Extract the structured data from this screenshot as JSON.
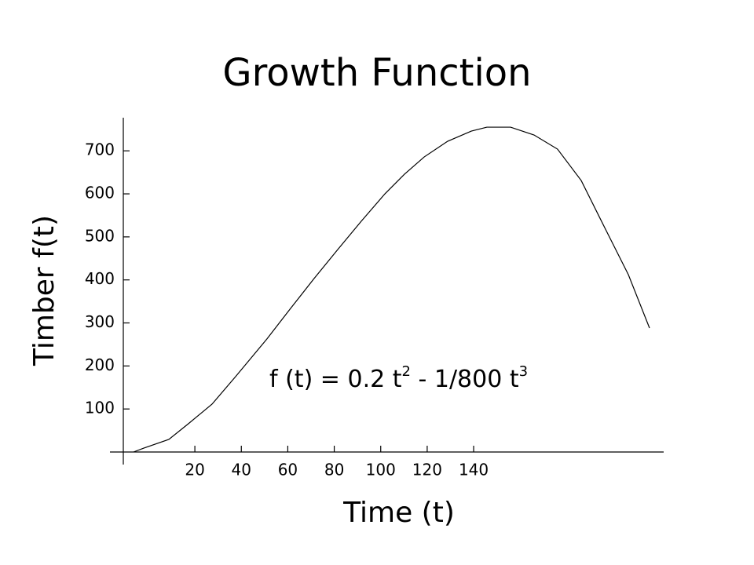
{
  "chart_data": {
    "type": "line",
    "title": "Growth Function",
    "x_label": "Time (t)",
    "y_label": "Timber f(t)",
    "annotation": [
      "f (t)  = 0.2 t",
      "2",
      " - 1/800 t",
      "3"
    ],
    "x": [
      -6.4,
      -2.0,
      8.8,
      17.2,
      27.4,
      37.5,
      51.0,
      61.2,
      71.3,
      81.5,
      91.6,
      101.8,
      110.2,
      118.7,
      128.8,
      139.0,
      145.7,
      155.9,
      166.0,
      176.1,
      186.3,
      196.4,
      206.6,
      215.7
    ],
    "series": [
      {
        "color": "#000000",
        "values": [
          0,
          9.1,
          29.2,
          65.7,
          111.3,
          175.1,
          262.6,
          333.7,
          403.1,
          470.5,
          536.2,
          600.0,
          645.6,
          685.7,
          722.2,
          745.9,
          755.0,
          755.0,
          736.8,
          704.0,
          631.0,
          521.6,
          412.2,
          288.2
        ]
      }
    ],
    "xlim": [
      -10.8,
      221.8
    ],
    "ylim": [
      0,
      777
    ],
    "xticks": [
      20,
      40,
      60,
      80,
      100,
      120,
      140
    ],
    "yticks": [
      100,
      200,
      300,
      400,
      500,
      600,
      700
    ],
    "grid": false
  }
}
